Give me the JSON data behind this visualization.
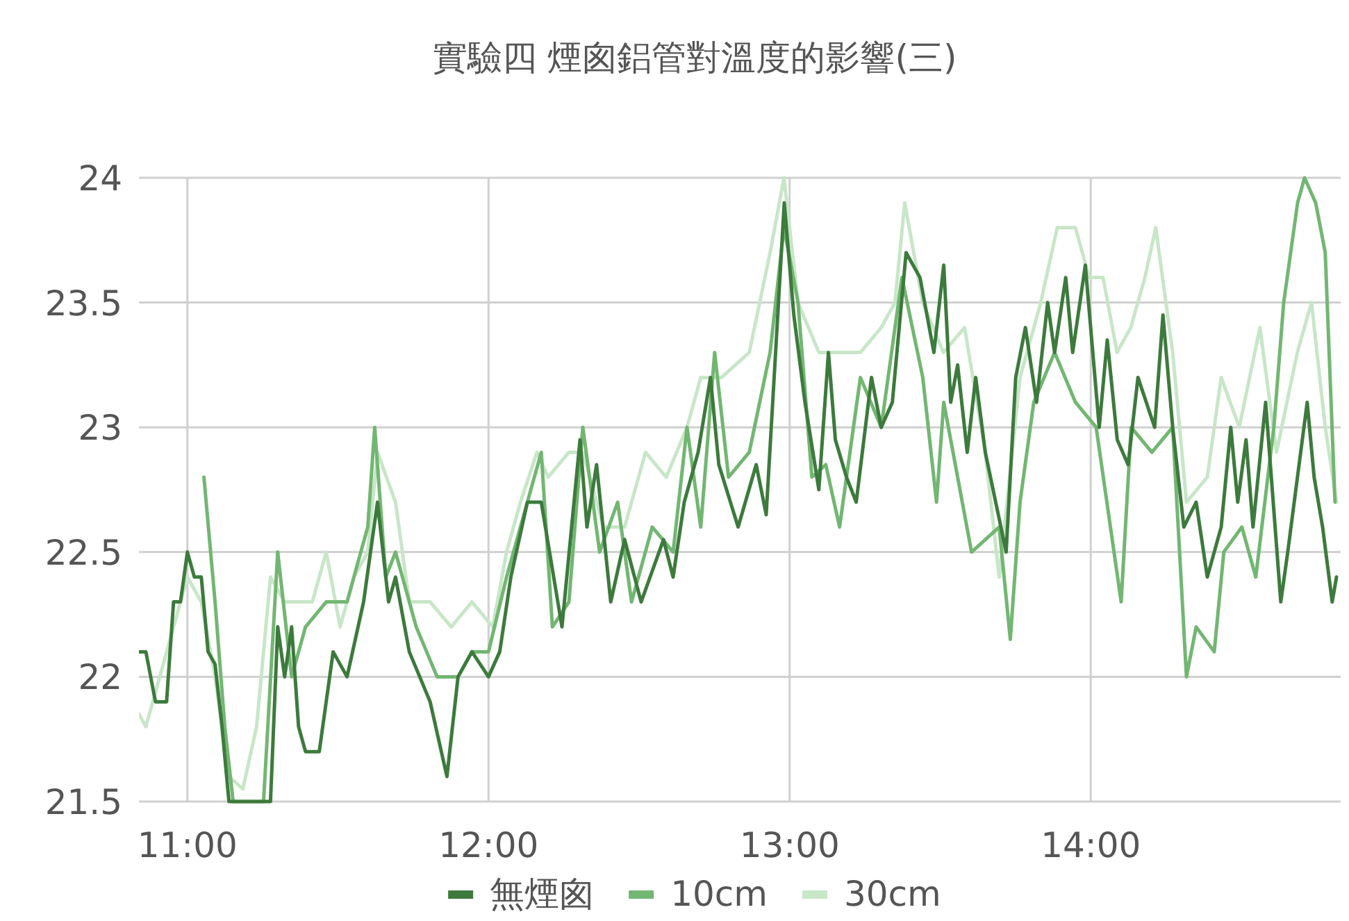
{
  "chart_data": {
    "type": "line",
    "title": "實驗四 煙囪鋁管對溫度的影響(三)",
    "xlim": [
      10.839,
      14.83
    ],
    "ylim": [
      21.5,
      24
    ],
    "xticks": [
      {
        "value": 11,
        "label": "11:00"
      },
      {
        "value": 12,
        "label": "12:00"
      },
      {
        "value": 13,
        "label": "13:00"
      },
      {
        "value": 14,
        "label": "14:00"
      }
    ],
    "yticks": [
      21.5,
      22,
      22.5,
      23,
      23.5,
      24
    ],
    "grid": true,
    "legend": "bottom",
    "marker": "none",
    "line_style": "solid",
    "series": [
      {
        "name": "無煙囪",
        "color": "#3d7a3d",
        "x": [
          10.839,
          10.862,
          10.894,
          10.931,
          10.954,
          10.977,
          11,
          11.023,
          11.046,
          11.069,
          11.092,
          11.115,
          11.138,
          11.161,
          11.207,
          11.253,
          11.276,
          11.3,
          11.323,
          11.346,
          11.369,
          11.392,
          11.438,
          11.484,
          11.53,
          11.585,
          11.631,
          11.668,
          11.691,
          11.737,
          11.806,
          11.862,
          11.899,
          11.945,
          12,
          12.037,
          12.074,
          12.129,
          12.175,
          12.244,
          12.304,
          12.327,
          12.359,
          12.406,
          12.452,
          12.507,
          12.581,
          12.613,
          12.65,
          12.696,
          12.737,
          12.765,
          12.829,
          12.889,
          12.922,
          12.982,
          13.014,
          13.051,
          13.097,
          13.129,
          13.152,
          13.189,
          13.221,
          13.272,
          13.304,
          13.341,
          13.387,
          13.433,
          13.479,
          13.512,
          13.535,
          13.558,
          13.59,
          13.618,
          13.65,
          13.719,
          13.751,
          13.783,
          13.82,
          13.857,
          13.88,
          13.917,
          13.94,
          13.982,
          14.028,
          14.055,
          14.088,
          14.124,
          14.157,
          14.212,
          14.24,
          14.272,
          14.309,
          14.35,
          14.387,
          14.433,
          14.465,
          14.488,
          14.516,
          14.539,
          14.581,
          14.631,
          14.654,
          14.719,
          14.742,
          14.77,
          14.802,
          14.816
        ],
        "values": [
          22.1,
          22.1,
          21.9,
          21.9,
          22.3,
          22.3,
          22.5,
          22.4,
          22.4,
          22.1,
          22.05,
          21.8,
          21.5,
          21.5,
          21.5,
          21.5,
          21.5,
          22.2,
          22.0,
          22.2,
          21.8,
          21.7,
          21.7,
          22.1,
          22.0,
          22.3,
          22.7,
          22.3,
          22.4,
          22.1,
          21.9,
          21.6,
          22.0,
          22.1,
          22.0,
          22.1,
          22.4,
          22.7,
          22.7,
          22.2,
          22.95,
          22.6,
          22.85,
          22.3,
          22.55,
          22.3,
          22.55,
          22.4,
          22.7,
          22.9,
          23.2,
          22.85,
          22.6,
          22.85,
          22.65,
          23.9,
          23.45,
          23.1,
          22.75,
          23.3,
          22.95,
          22.8,
          22.7,
          23.2,
          23.0,
          23.1,
          23.7,
          23.6,
          23.3,
          23.65,
          23.1,
          23.25,
          22.9,
          23.2,
          22.9,
          22.5,
          23.2,
          23.4,
          23.1,
          23.5,
          23.3,
          23.6,
          23.3,
          23.65,
          23.0,
          23.35,
          22.95,
          22.85,
          23.2,
          23.0,
          23.45,
          23.0,
          22.6,
          22.7,
          22.4,
          22.6,
          23.0,
          22.7,
          22.95,
          22.6,
          23.1,
          22.3,
          22.5,
          23.1,
          22.8,
          22.6,
          22.3,
          22.4
        ]
      },
      {
        "name": "10cm",
        "color": "#72b672",
        "x": [
          11.055,
          11.092,
          11.124,
          11.152,
          11.253,
          11.3,
          11.346,
          11.392,
          11.461,
          11.53,
          11.599,
          11.622,
          11.659,
          11.691,
          11.76,
          11.829,
          11.899,
          11.945,
          12,
          12.06,
          12.129,
          12.175,
          12.212,
          12.267,
          12.313,
          12.369,
          12.429,
          12.475,
          12.544,
          12.613,
          12.659,
          12.705,
          12.751,
          12.797,
          12.866,
          12.935,
          12.981,
          13.028,
          13.074,
          13.12,
          13.166,
          13.235,
          13.304,
          13.373,
          13.442,
          13.488,
          13.512,
          13.604,
          13.696,
          13.733,
          13.765,
          13.811,
          13.88,
          13.949,
          14.018,
          14.101,
          14.134,
          14.203,
          14.272,
          14.318,
          14.35,
          14.41,
          14.442,
          14.502,
          14.548,
          14.608,
          14.641,
          14.687,
          14.71,
          14.747,
          14.779,
          14.811
        ],
        "values": [
          22.8,
          22.3,
          21.8,
          21.5,
          21.5,
          22.5,
          22.0,
          22.2,
          22.3,
          22.3,
          22.6,
          23.0,
          22.4,
          22.5,
          22.2,
          22.0,
          22.0,
          22.1,
          22.1,
          22.4,
          22.7,
          22.9,
          22.2,
          22.3,
          23.0,
          22.5,
          22.7,
          22.3,
          22.6,
          22.5,
          23.0,
          22.6,
          23.3,
          22.8,
          22.9,
          23.3,
          23.8,
          23.5,
          22.8,
          22.85,
          22.6,
          23.2,
          23.0,
          23.6,
          23.2,
          22.7,
          23.1,
          22.5,
          22.6,
          22.15,
          22.7,
          23.1,
          23.3,
          23.1,
          23.0,
          22.3,
          23.0,
          22.9,
          23.0,
          22.0,
          22.2,
          22.1,
          22.5,
          22.6,
          22.4,
          23.0,
          23.5,
          23.9,
          24.0,
          23.9,
          23.7,
          22.7
        ]
      },
      {
        "name": "30cm",
        "color": "#c8e6c8",
        "x": [
          10.839,
          10.862,
          10.908,
          10.954,
          11,
          11.046,
          11.092,
          11.138,
          11.184,
          11.23,
          11.276,
          11.323,
          11.369,
          11.415,
          11.461,
          11.507,
          11.553,
          11.599,
          11.631,
          11.691,
          11.737,
          11.806,
          11.876,
          11.945,
          12.014,
          12.06,
          12.106,
          12.161,
          12.198,
          12.267,
          12.313,
          12.382,
          12.452,
          12.521,
          12.59,
          12.659,
          12.705,
          12.774,
          12.866,
          12.935,
          12.981,
          13.028,
          13.097,
          13.166,
          13.235,
          13.304,
          13.35,
          13.382,
          13.442,
          13.511,
          13.581,
          13.65,
          13.696,
          13.765,
          13.834,
          13.889,
          13.949,
          13.995,
          14.041,
          14.087,
          14.133,
          14.18,
          14.216,
          14.272,
          14.318,
          14.387,
          14.433,
          14.493,
          14.562,
          14.617,
          14.686,
          14.733,
          14.779,
          14.816
        ],
        "values": [
          21.85,
          21.8,
          22.0,
          22.2,
          22.4,
          22.3,
          22.0,
          21.6,
          21.55,
          21.8,
          22.4,
          22.3,
          22.3,
          22.3,
          22.5,
          22.2,
          22.4,
          22.5,
          22.9,
          22.7,
          22.3,
          22.3,
          22.2,
          22.3,
          22.2,
          22.5,
          22.7,
          22.9,
          22.8,
          22.9,
          22.9,
          22.6,
          22.6,
          22.9,
          22.8,
          23.0,
          23.2,
          23.2,
          23.3,
          23.7,
          24.0,
          23.5,
          23.3,
          23.3,
          23.3,
          23.4,
          23.5,
          23.9,
          23.5,
          23.3,
          23.4,
          22.9,
          22.4,
          23.2,
          23.5,
          23.8,
          23.8,
          23.6,
          23.6,
          23.3,
          23.4,
          23.6,
          23.8,
          23.3,
          22.7,
          22.8,
          23.2,
          23.0,
          23.4,
          22.9,
          23.3,
          23.5,
          23.0,
          22.7
        ]
      }
    ]
  }
}
